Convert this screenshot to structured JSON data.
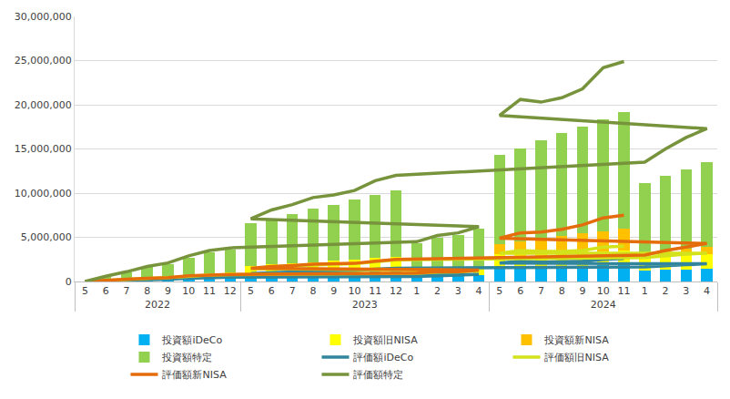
{
  "chart_data": {
    "type": "bar",
    "stacked": true,
    "grid": true,
    "legend": "bottom",
    "categories": [
      [
        "2022",
        "5"
      ],
      [
        "2022",
        "6"
      ],
      [
        "2022",
        "7"
      ],
      [
        "2022",
        "8"
      ],
      [
        "2022",
        "9"
      ],
      [
        "2022",
        "10"
      ],
      [
        "2022",
        "11"
      ],
      [
        "2022",
        "12"
      ],
      [
        "2023",
        "1"
      ],
      [
        "2023",
        "2"
      ],
      [
        "2023",
        "3"
      ],
      [
        "2023",
        "4"
      ],
      [
        "2023",
        "5"
      ],
      [
        "2023",
        "6"
      ],
      [
        "2023",
        "7"
      ],
      [
        "2023",
        "8"
      ],
      [
        "2023",
        "9"
      ],
      [
        "2023",
        "10"
      ],
      [
        "2023",
        "11"
      ],
      [
        "2023",
        "12"
      ],
      [
        "2024",
        "1"
      ],
      [
        "2024",
        "2"
      ],
      [
        "2024",
        "3"
      ],
      [
        "2024",
        "4"
      ],
      [
        "2024",
        "5"
      ],
      [
        "2024",
        "6"
      ],
      [
        "2024",
        "7"
      ],
      [
        "2024",
        "8"
      ],
      [
        "2024",
        "9"
      ],
      [
        "2024",
        "10"
      ],
      [
        "2024",
        "11"
      ]
    ],
    "ylim": [
      0,
      30000000
    ],
    "yticks": [
      0,
      {
        "value": 5000000,
        "label": "5,000,000"
      },
      {
        "value": 10000000,
        "label": "10,000,000"
      },
      {
        "value": 15000000,
        "label": "15,000,000"
      },
      {
        "value": 20000000,
        "label": "20,000,000"
      },
      {
        "value": 25000000,
        "label": "25,000,000"
      },
      {
        "value": 30000000,
        "label": "30,000,000"
      }
    ],
    "series": [
      {
        "name": "投資額iDeCo",
        "type": "bar",
        "color": "#00B0F0",
        "values": [
          0,
          60000,
          120000,
          190000,
          250000,
          310000,
          380000,
          440000,
          500000,
          570000,
          630000,
          690000,
          760000,
          820000,
          880000,
          950000,
          1010000,
          1070000,
          1140000,
          1200000,
          1260000,
          1330000,
          1390000,
          1450000,
          1520000,
          1580000,
          1640000,
          1710000,
          1770000,
          1830000,
          1900000
        ]
      },
      {
        "name": "投資額旧NISA",
        "type": "bar",
        "color": "#FFFF00",
        "values": [
          0,
          80000,
          170000,
          250000,
          340000,
          420000,
          510000,
          590000,
          670000,
          760000,
          840000,
          930000,
          1010000,
          1100000,
          1180000,
          1260000,
          1350000,
          1430000,
          1520000,
          1600000,
          1600000,
          1600000,
          1600000,
          1600000,
          1600000,
          1600000,
          1600000,
          1600000,
          1600000,
          1600000,
          1600000
        ]
      },
      {
        "name": "投資額新NISA",
        "type": "bar",
        "color": "#FFC000",
        "values": [
          0,
          0,
          0,
          0,
          0,
          0,
          0,
          0,
          0,
          0,
          0,
          0,
          0,
          0,
          0,
          0,
          0,
          0,
          0,
          0,
          230000,
          460000,
          680000,
          910000,
          1140000,
          1360000,
          1590000,
          1820000,
          2050000,
          2270000,
          2500000
        ]
      },
      {
        "name": "投資額特定",
        "type": "bar",
        "color": "#92D050",
        "values": [
          0,
          360000,
          710000,
          1160000,
          1410000,
          1970000,
          2410000,
          2570000,
          3130000,
          3570000,
          3830000,
          4380000,
          4830000,
          5180000,
          5540000,
          5990000,
          6340000,
          6800000,
          7140000,
          7500000,
          8010000,
          8610000,
          9030000,
          9540000,
          10040000,
          10560000,
          11170000,
          11670000,
          12080000,
          12700000,
          13200000
        ]
      },
      {
        "name": "評価額iDeCo",
        "type": "line",
        "color": "#31859C",
        "values": [
          0,
          50000,
          120000,
          200000,
          260000,
          350000,
          420000,
          480000,
          560000,
          650000,
          700000,
          800000,
          900000,
          1000000,
          1050000,
          1150000,
          1200000,
          1250000,
          1400000,
          1500000,
          1650000,
          1800000,
          1900000,
          2000000,
          2100000,
          2300000,
          2200000,
          2250000,
          2300000,
          2500000,
          2600000
        ]
      },
      {
        "name": "評価額旧NISA",
        "type": "line",
        "color": "#D4E21C",
        "values": [
          0,
          140000,
          240000,
          340000,
          430000,
          620000,
          720000,
          770000,
          920000,
          1060000,
          1070000,
          1260000,
          1450000,
          1650000,
          1750000,
          1900000,
          1950000,
          2000000,
          2250000,
          2450000,
          2700000,
          2900000,
          3100000,
          3200000,
          3200000,
          3500000,
          3400000,
          3400000,
          3500000,
          3900000,
          4000000
        ]
      },
      {
        "name": "評価額新NISA",
        "type": "line",
        "color": "#E46C0A",
        "values": [
          0,
          150000,
          250000,
          350000,
          450000,
          650000,
          750000,
          800000,
          950000,
          1100000,
          1100000,
          1300000,
          1500000,
          1700000,
          1800000,
          1950000,
          2000000,
          2050000,
          2300000,
          2500000,
          3000000,
          3500000,
          3900000,
          4300000,
          4900000,
          5500000,
          5600000,
          5900000,
          6400000,
          7200000,
          7500000
        ]
      },
      {
        "name": "評価額特定",
        "type": "line",
        "color": "#77933C",
        "values": [
          0,
          600000,
          1100000,
          1700000,
          2100000,
          2900000,
          3500000,
          3800000,
          4500000,
          5200000,
          5500000,
          6200000,
          7100000,
          8100000,
          8700000,
          9500000,
          9800000,
          10300000,
          11400000,
          12000000,
          13500000,
          15000000,
          16300000,
          17300000,
          18800000,
          20600000,
          20300000,
          20800000,
          21800000,
          24200000,
          24900000
        ]
      }
    ]
  }
}
